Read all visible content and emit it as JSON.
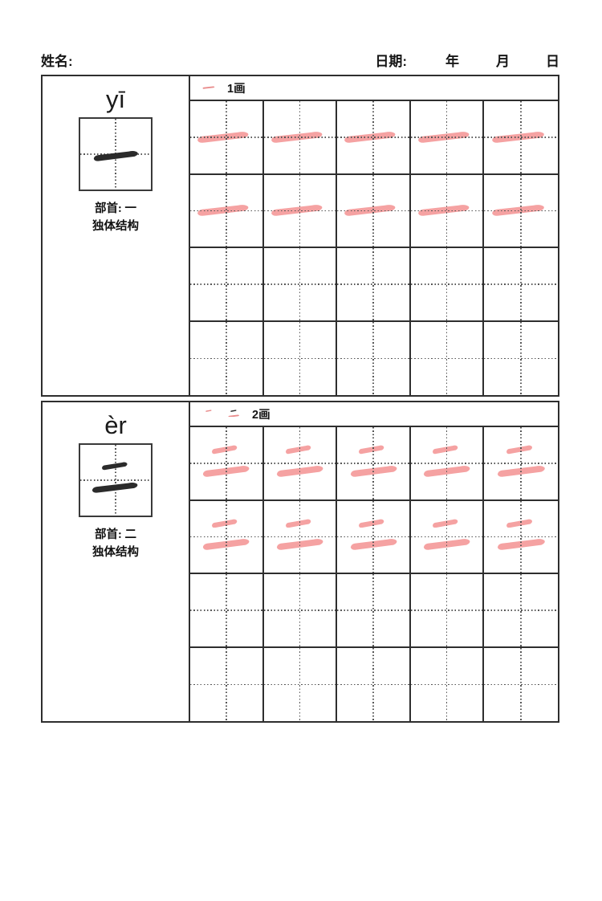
{
  "header": {
    "name_label": "姓名:",
    "date_label": "日期:",
    "year_label": "年",
    "month_label": "月",
    "day_label": "日"
  },
  "colors": {
    "trace_pink": "#F5A2A2",
    "stroke_highlight_red": "#E98C8C",
    "ink_black": "#2B2B2B",
    "grid_line": "#2E2E2E",
    "guide_dots": "#565656"
  },
  "sections": [
    {
      "character": "一",
      "pinyin": "yī",
      "radical_label": "部首: 一",
      "structure_label": "独体结构",
      "stroke_count_label": "1画",
      "stroke_count": 1,
      "grid": {
        "columns": 5,
        "rows": 4,
        "traced_rows": 2,
        "traced_character": "一"
      }
    },
    {
      "character": "二",
      "pinyin": "èr",
      "radical_label": "部首: 二",
      "structure_label": "独体结构",
      "stroke_count_label": "2画",
      "stroke_count": 2,
      "grid": {
        "columns": 5,
        "rows": 4,
        "traced_rows": 2,
        "traced_character": "二"
      }
    }
  ]
}
